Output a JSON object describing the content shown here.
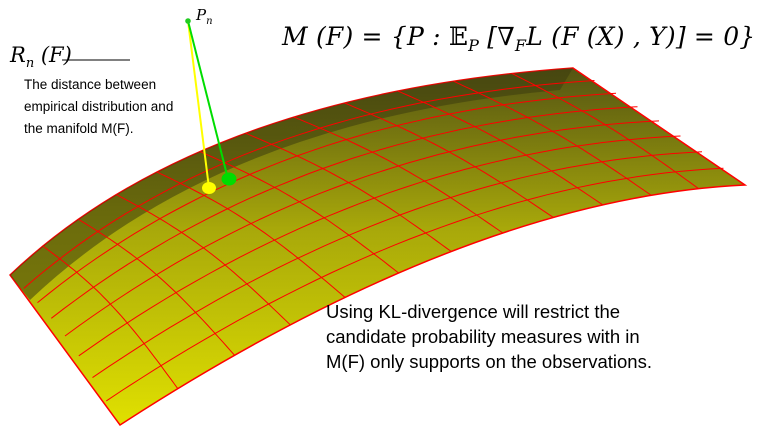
{
  "formula": {
    "text": "M (F) = {P : 𝔼_P [∇_F L (F (X) , Y)] = 0}",
    "lhs": "M (F) = {P : ",
    "expectation": "𝔼",
    "expectation_sub": "P",
    "open_bracket": " [",
    "nabla": "∇",
    "nabla_sub": "F",
    "loss": "L (F (X) , Y)",
    "close": "] = 0}"
  },
  "rn_label": {
    "base": "R",
    "sub": "n",
    "arg": " (F)"
  },
  "pn_label": {
    "base": "P",
    "sub": "n"
  },
  "rn_description": {
    "lines": [
      "The distance between",
      "empirical distribution and",
      "the manifold M(F)."
    ]
  },
  "kl_note": {
    "lines": [
      "Using KL-divergence will restrict the",
      "candidate probability measures with in",
      "M(F) only supports on the observations."
    ]
  },
  "colors": {
    "surface_dark": "#545413",
    "surface_mid": "#a8a80a",
    "surface_light": "#e0e000",
    "grid_line": "#ff0000",
    "distance_line_yellow": "#ffff00",
    "distance_line_green": "#00dd00",
    "point_yellow": "#ffff00",
    "point_green": "#00dd00",
    "pn_point": "#22cc22",
    "leader_line": "#000000"
  },
  "icons": {
    "manifold": "manifold-surface",
    "projection": "projection-lines"
  }
}
